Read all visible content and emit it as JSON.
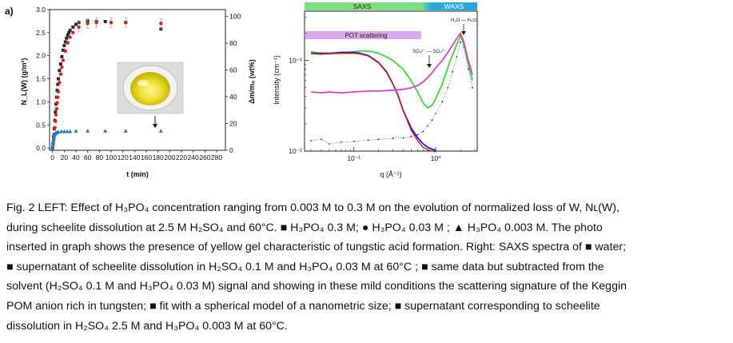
{
  "panel_label": "a)",
  "chart_data": [
    {
      "type": "scatter",
      "name": "left-panel",
      "xlabel": "t (min)",
      "ylabel": "N_L(W) (g/m²)",
      "ylabel_right": "Δm/m₀ (wt%)",
      "xlim": [
        -5,
        295
      ],
      "ylim": [
        -0.05,
        3.0
      ],
      "ylim_right": [
        0,
        105
      ],
      "x_ticks": [
        0,
        20,
        40,
        60,
        80,
        100,
        120,
        140,
        160,
        180,
        200,
        220,
        240,
        260,
        280
      ],
      "x_tick_labels": [
        "0",
        "20",
        "40",
        "60",
        "80",
        "100",
        "120",
        "140",
        "160",
        "180",
        "200",
        "220",
        "240",
        "260",
        "280"
      ],
      "y_ticks": [
        0.0,
        0.5,
        1.0,
        1.5,
        2.0,
        2.5,
        3.0
      ],
      "y_tick_labels": [
        "0.0",
        "0.5",
        "1.0",
        "1.5",
        "2.0",
        "2.5",
        "3.0"
      ],
      "y_right_ticks": [
        0,
        20,
        40,
        60,
        80,
        100
      ],
      "y_right_tick_labels": [
        "0",
        "20",
        "40",
        "60",
        "80",
        "100"
      ],
      "series": [
        {
          "name": "H3PO4 0.3 M",
          "marker": "square",
          "color": "#2b2b2b",
          "x": [
            0,
            1,
            2,
            3,
            4,
            5,
            6,
            7,
            8,
            9,
            10,
            12,
            14,
            16,
            18,
            20,
            22,
            24,
            26,
            28,
            30,
            35,
            40,
            45,
            60,
            75,
            90,
            125,
            185
          ],
          "y": [
            0.0,
            0.1,
            0.25,
            0.42,
            0.6,
            0.78,
            0.95,
            1.1,
            1.25,
            1.38,
            1.5,
            1.68,
            1.82,
            1.98,
            2.12,
            2.22,
            2.3,
            2.38,
            2.45,
            2.5,
            2.55,
            2.62,
            2.68,
            2.72,
            2.75,
            2.74,
            2.74,
            2.72,
            2.58
          ]
        },
        {
          "name": "H3PO4 0.03 M",
          "marker": "circle",
          "color": "#e02020",
          "x": [
            0,
            1,
            2,
            3,
            4,
            5,
            6,
            7,
            8,
            9,
            10,
            12,
            14,
            16,
            18,
            22,
            26,
            30,
            35,
            45,
            60,
            75,
            100,
            125,
            185
          ],
          "y": [
            0.0,
            0.08,
            0.18,
            0.3,
            0.44,
            0.58,
            0.72,
            0.85,
            0.98,
            1.1,
            1.22,
            1.42,
            1.6,
            1.75,
            1.9,
            2.1,
            2.28,
            2.4,
            2.5,
            2.62,
            2.7,
            2.72,
            2.72,
            2.72,
            2.7
          ],
          "error_bars_visible": true
        },
        {
          "name": "H3PO4 0.003 M",
          "marker": "triangle",
          "color": "#1f78c8",
          "x": [
            0,
            0.5,
            1,
            1.5,
            2,
            2.5,
            3,
            4,
            5,
            6,
            8,
            10,
            15,
            20,
            25,
            30,
            40,
            60,
            90,
            125,
            185
          ],
          "y": [
            0.0,
            0.05,
            0.1,
            0.15,
            0.2,
            0.24,
            0.27,
            0.3,
            0.32,
            0.33,
            0.34,
            0.35,
            0.36,
            0.36,
            0.36,
            0.36,
            0.37,
            0.37,
            0.37,
            0.37,
            0.37
          ]
        }
      ],
      "annotations": [
        {
          "type": "arrow",
          "label": "",
          "at_x": 175,
          "pointing_to_y": 0.45
        }
      ],
      "inset_photo": {
        "description": "yellow gel in beaker"
      }
    },
    {
      "type": "line",
      "name": "right-panel",
      "xscale": "log",
      "yscale": "log",
      "xlabel": "q (Å⁻¹)",
      "ylabel": "Intensity (cm⁻¹)",
      "xlim": [
        0.025,
        3.2
      ],
      "ylim": [
        0.01,
        0.35
      ],
      "x_tick_labels": [
        "10⁻¹",
        "10⁰"
      ],
      "y_tick_labels": [
        "10⁻¹",
        "10⁻²"
      ],
      "bands": {
        "saxs": "SAXS",
        "waxs": "WAXS"
      },
      "pot_label": "POT scattering",
      "so4_label": "SO₄²⁻ — SO₄²⁻",
      "h2o_label": "H₂O — H₂O",
      "series": [
        {
          "name": "water",
          "color": "#222222",
          "x": [
            0.03,
            0.04,
            0.05,
            0.07,
            0.1,
            0.15,
            0.2,
            0.3,
            0.4,
            0.5,
            0.6,
            0.7,
            0.8,
            0.9,
            1.0,
            1.2,
            1.4,
            1.6,
            1.8,
            2.0,
            2.2,
            2.5,
            2.8
          ],
          "y": [
            0.013,
            0.0135,
            0.012,
            0.0125,
            0.0128,
            0.0132,
            0.0135,
            0.0138,
            0.014,
            0.0145,
            0.0152,
            0.0165,
            0.019,
            0.022,
            0.026,
            0.035,
            0.05,
            0.075,
            0.11,
            0.16,
            0.14,
            0.08,
            0.05
          ]
        },
        {
          "name": "supernatant H2SO4 0.1 M + H3PO4 0.03 M",
          "color": "#33dd33",
          "x": [
            0.03,
            0.04,
            0.05,
            0.07,
            0.1,
            0.13,
            0.17,
            0.2,
            0.25,
            0.3,
            0.4,
            0.5,
            0.6,
            0.7,
            0.8,
            0.9,
            1.0,
            1.2,
            1.5,
            1.8,
            2.0,
            2.2,
            2.5,
            2.8
          ],
          "y": [
            0.125,
            0.12,
            0.118,
            0.12,
            0.125,
            0.128,
            0.125,
            0.12,
            0.11,
            0.1,
            0.08,
            0.06,
            0.045,
            0.034,
            0.03,
            0.032,
            0.038,
            0.055,
            0.1,
            0.15,
            0.19,
            0.15,
            0.09,
            0.06
          ]
        },
        {
          "name": "subtracted data",
          "color": "#1818cc",
          "x": [
            0.03,
            0.04,
            0.05,
            0.07,
            0.1,
            0.12,
            0.15,
            0.2,
            0.25,
            0.3,
            0.35,
            0.4,
            0.5,
            0.6,
            0.7,
            0.8,
            0.9,
            1.0
          ],
          "y": [
            0.12,
            0.118,
            0.12,
            0.123,
            0.123,
            0.12,
            0.113,
            0.095,
            0.075,
            0.055,
            0.04,
            0.028,
            0.018,
            0.014,
            0.012,
            0.011,
            0.0105,
            0.0102
          ]
        },
        {
          "name": "fit spherical model",
          "color": "#d81818",
          "x": [
            0.03,
            0.05,
            0.07,
            0.1,
            0.12,
            0.15,
            0.2,
            0.25,
            0.3,
            0.35,
            0.4,
            0.5,
            0.6,
            0.7,
            0.8,
            0.9,
            1.0
          ],
          "y": [
            0.121,
            0.121,
            0.12,
            0.12,
            0.118,
            0.112,
            0.094,
            0.074,
            0.055,
            0.04,
            0.028,
            0.017,
            0.013,
            0.011,
            0.0103,
            0.01,
            0.0098
          ]
        },
        {
          "name": "supernatant H2SO4 2.5 M + H3PO4 0.003 M",
          "color": "#e23fc8",
          "x": [
            0.03,
            0.04,
            0.05,
            0.07,
            0.1,
            0.15,
            0.2,
            0.3,
            0.4,
            0.5,
            0.6,
            0.7,
            0.8,
            0.9,
            1.0,
            1.2,
            1.5,
            1.8,
            2.0,
            2.2,
            2.5,
            2.8
          ],
          "y": [
            0.045,
            0.044,
            0.045,
            0.044,
            0.045,
            0.046,
            0.046,
            0.047,
            0.048,
            0.05,
            0.053,
            0.058,
            0.065,
            0.073,
            0.083,
            0.1,
            0.135,
            0.175,
            0.2,
            0.16,
            0.1,
            0.07
          ]
        }
      ]
    }
  ],
  "caption": {
    "lines": [
      "Fig. 2 LEFT: Effect of H₃PO₄ concentration ranging from 0.003 M to 0.3 M on the evolution of normalized loss of W, Nʟ(W),",
      "during scheelite dissolution at 2.5 M H₂SO₄ and 60°C. ■ H₃PO₄ 0.3 M; ● H₃PO₄ 0.03 M ; ▲ H₃PO₄ 0.003 M. The photo",
      "inserted in graph shows the presence of yellow gel characteristic of tungstic acid formation. Right: SAXS spectra of ■ water;",
      "■ supernatant of scheelite dissolution in H₂SO₄ 0.1 M and H₃PO₄ 0.03 M at 60°C ; ■ same data but subtracted from the",
      "solvent (H₂SO₄ 0.1 M and H₃PO₄ 0.03 M) signal  and showing in these mild conditions the scattering signature of the Keggin",
      "POM anion rich in tungsten; ■ fit with a spherical model of a nanometric size; ■ supernatant corresponding to scheelite",
      "dissolution in H₂SO₄ 2.5 M and H₃PO₄ 0.003 M at 60°C."
    ]
  }
}
